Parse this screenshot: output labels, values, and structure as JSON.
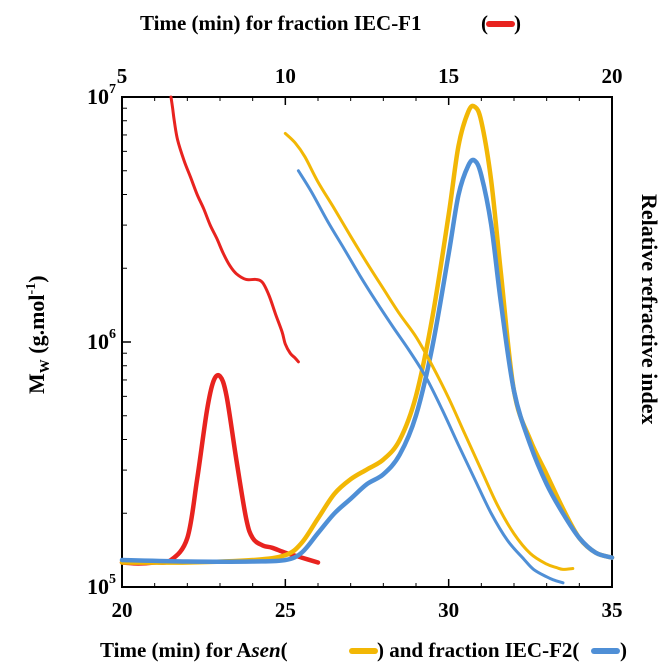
{
  "chart_data": {
    "type": "line",
    "title": "",
    "top_axis": {
      "label": "Time (min) for fraction IEC-F1",
      "legend_color": "#e8231f",
      "range": [
        5,
        20
      ],
      "ticks": [
        5,
        10,
        15,
        20
      ]
    },
    "bottom_axis": {
      "label_parts": [
        "Time (min) for ",
        "A",
        "sen",
        " and fraction IEC-F2"
      ],
      "legend_colors": [
        "#f2b705",
        "#4f8fd6"
      ],
      "range": [
        20,
        35
      ],
      "ticks": [
        20,
        25,
        30,
        35
      ]
    },
    "y_axis": {
      "label_main": "M",
      "label_sub": "W",
      "label_unit_open": " (g.mol",
      "label_unit_exp": "-1",
      "label_unit_close": ")",
      "scale": "log",
      "range": [
        100000,
        10000000
      ],
      "tick_base": "10",
      "tick_exponents": [
        "5",
        "6",
        "7"
      ]
    },
    "right_axis": {
      "label": "Relative refractive index"
    },
    "series": [
      {
        "id": "iecf1-mw",
        "color": "#e8231f",
        "width": 3.0,
        "x_axis": "top",
        "y_axis": "left",
        "points": [
          [
            6.5,
            10000000
          ],
          [
            6.55,
            9000000
          ],
          [
            6.6,
            8000000
          ],
          [
            6.7,
            6700000
          ],
          [
            6.9,
            5500000
          ],
          [
            7.1,
            4700000
          ],
          [
            7.3,
            4000000
          ],
          [
            7.5,
            3500000
          ],
          [
            7.7,
            3000000
          ],
          [
            7.9,
            2650000
          ],
          [
            8.1,
            2300000
          ],
          [
            8.3,
            2050000
          ],
          [
            8.5,
            1900000
          ],
          [
            8.8,
            1800000
          ],
          [
            9.1,
            1800000
          ],
          [
            9.3,
            1750000
          ],
          [
            9.5,
            1550000
          ],
          [
            9.7,
            1300000
          ],
          [
            9.9,
            1100000
          ],
          [
            10.0,
            980000
          ],
          [
            10.15,
            900000
          ],
          [
            10.3,
            860000
          ],
          [
            10.4,
            830000
          ]
        ]
      },
      {
        "id": "asen-mw",
        "color": "#f2b705",
        "width": 3.0,
        "x_axis": "bottom",
        "y_axis": "left",
        "points": [
          [
            25.0,
            7100000
          ],
          [
            25.3,
            6500000
          ],
          [
            25.6,
            5700000
          ],
          [
            26.0,
            4500000
          ],
          [
            26.5,
            3500000
          ],
          [
            27.0,
            2700000
          ],
          [
            27.5,
            2100000
          ],
          [
            28.0,
            1650000
          ],
          [
            28.5,
            1300000
          ],
          [
            29.0,
            1050000
          ],
          [
            29.5,
            800000
          ],
          [
            30.0,
            590000
          ],
          [
            30.5,
            420000
          ],
          [
            31.0,
            300000
          ],
          [
            31.5,
            215000
          ],
          [
            32.0,
            165000
          ],
          [
            32.5,
            137000
          ],
          [
            33.0,
            124000
          ],
          [
            33.3,
            120000
          ],
          [
            33.5,
            118000
          ],
          [
            33.8,
            119000
          ]
        ]
      },
      {
        "id": "iecf2-mw",
        "color": "#4f8fd6",
        "width": 3.0,
        "x_axis": "bottom",
        "y_axis": "left",
        "points": [
          [
            25.4,
            5000000
          ],
          [
            25.8,
            4100000
          ],
          [
            26.3,
            3100000
          ],
          [
            26.8,
            2400000
          ],
          [
            27.3,
            1850000
          ],
          [
            27.8,
            1450000
          ],
          [
            28.3,
            1150000
          ],
          [
            28.8,
            920000
          ],
          [
            29.3,
            720000
          ],
          [
            29.8,
            530000
          ],
          [
            30.3,
            380000
          ],
          [
            30.8,
            275000
          ],
          [
            31.3,
            200000
          ],
          [
            31.8,
            155000
          ],
          [
            32.3,
            130000
          ],
          [
            32.6,
            118000
          ],
          [
            33.0,
            110000
          ],
          [
            33.2,
            107000
          ],
          [
            33.5,
            104000
          ]
        ]
      },
      {
        "id": "iecf1-ri",
        "color": "#e8231f",
        "width": 4.5,
        "x_axis": "top",
        "y_axis": "right",
        "points": [
          [
            5.0,
            0.05
          ],
          [
            5.5,
            0.048
          ],
          [
            6.0,
            0.05
          ],
          [
            6.5,
            0.055
          ],
          [
            7.0,
            0.1
          ],
          [
            7.3,
            0.22
          ],
          [
            7.6,
            0.36
          ],
          [
            7.8,
            0.42
          ],
          [
            8.0,
            0.43
          ],
          [
            8.2,
            0.39
          ],
          [
            8.5,
            0.26
          ],
          [
            8.8,
            0.14
          ],
          [
            9.0,
            0.1
          ],
          [
            9.3,
            0.085
          ],
          [
            9.6,
            0.08
          ],
          [
            10.0,
            0.07
          ],
          [
            10.5,
            0.06
          ],
          [
            11.0,
            0.05
          ]
        ]
      },
      {
        "id": "asen-ri",
        "color": "#f2b705",
        "width": 4.5,
        "x_axis": "bottom",
        "y_axis": "right",
        "points": [
          [
            20.0,
            0.05
          ],
          [
            22.0,
            0.05
          ],
          [
            24.0,
            0.055
          ],
          [
            25.0,
            0.065
          ],
          [
            25.5,
            0.09
          ],
          [
            26.0,
            0.14
          ],
          [
            26.5,
            0.19
          ],
          [
            27.0,
            0.22
          ],
          [
            27.5,
            0.24
          ],
          [
            28.0,
            0.26
          ],
          [
            28.5,
            0.3
          ],
          [
            29.0,
            0.39
          ],
          [
            29.5,
            0.55
          ],
          [
            30.0,
            0.76
          ],
          [
            30.3,
            0.9
          ],
          [
            30.6,
            0.97
          ],
          [
            30.8,
            0.98
          ],
          [
            31.0,
            0.95
          ],
          [
            31.3,
            0.83
          ],
          [
            31.6,
            0.64
          ],
          [
            32.0,
            0.4
          ],
          [
            32.5,
            0.3
          ],
          [
            33.0,
            0.23
          ],
          [
            33.5,
            0.16
          ],
          [
            34.0,
            0.1
          ],
          [
            34.5,
            0.07
          ],
          [
            35.0,
            0.06
          ]
        ]
      },
      {
        "id": "iecf2-ri",
        "color": "#4f8fd6",
        "width": 4.5,
        "x_axis": "bottom",
        "y_axis": "right",
        "points": [
          [
            20.0,
            0.055
          ],
          [
            22.0,
            0.052
          ],
          [
            24.0,
            0.052
          ],
          [
            25.0,
            0.055
          ],
          [
            25.5,
            0.07
          ],
          [
            26.0,
            0.11
          ],
          [
            26.5,
            0.15
          ],
          [
            27.0,
            0.18
          ],
          [
            27.5,
            0.21
          ],
          [
            28.0,
            0.23
          ],
          [
            28.5,
            0.27
          ],
          [
            29.0,
            0.35
          ],
          [
            29.5,
            0.49
          ],
          [
            30.0,
            0.68
          ],
          [
            30.3,
            0.8
          ],
          [
            30.6,
            0.86
          ],
          [
            30.8,
            0.87
          ],
          [
            31.0,
            0.84
          ],
          [
            31.3,
            0.74
          ],
          [
            31.6,
            0.58
          ],
          [
            32.0,
            0.4
          ],
          [
            32.5,
            0.29
          ],
          [
            33.0,
            0.21
          ],
          [
            33.5,
            0.15
          ],
          [
            34.0,
            0.1
          ],
          [
            34.5,
            0.07
          ],
          [
            35.0,
            0.06
          ]
        ]
      }
    ]
  }
}
